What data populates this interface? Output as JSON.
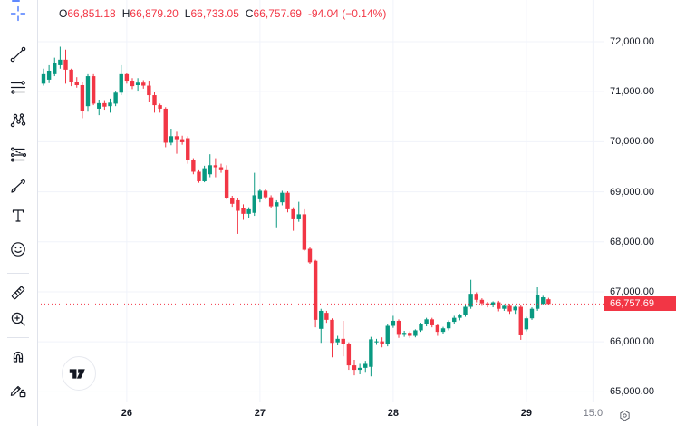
{
  "legend": {
    "items": [
      {
        "k": "O",
        "v": "66,851.18"
      },
      {
        "k": "H",
        "v": "66,879.20"
      },
      {
        "k": "L",
        "v": "66,733.05"
      },
      {
        "k": "C",
        "v": "66,757.69"
      }
    ],
    "change": "-94.04 (−0.14%)"
  },
  "toolbar": {
    "tools": [
      {
        "name": "crosshair-tool",
        "icon": "crosshair",
        "color": "#2962ff"
      },
      {
        "name": "trend-line-tool",
        "icon": "trend-line"
      },
      {
        "name": "fib-retracement-tool",
        "icon": "fib-lines"
      },
      {
        "name": "pattern-tool",
        "icon": "xabcd-pattern"
      },
      {
        "name": "position-tool",
        "icon": "position-lines"
      },
      {
        "name": "brush-tool",
        "icon": "brush"
      },
      {
        "name": "text-tool",
        "icon": "text"
      },
      {
        "name": "emoji-tool",
        "icon": "smiley"
      },
      {
        "name": "measure-tool",
        "icon": "ruler"
      },
      {
        "name": "zoom-in-tool",
        "icon": "zoom-in"
      },
      {
        "name": "magnet-tool",
        "icon": "magnet"
      },
      {
        "name": "drawing-lock-tool",
        "icon": "pencil-lock"
      }
    ]
  },
  "price_axis": {
    "ticks": [
      {
        "label": "72,000.00",
        "value": 72000
      },
      {
        "label": "71,000.00",
        "value": 71000
      },
      {
        "label": "70,000.00",
        "value": 70000
      },
      {
        "label": "69,000.00",
        "value": 69000
      },
      {
        "label": "68,000.00",
        "value": 68000
      },
      {
        "label": "67,000.00",
        "value": 67000
      },
      {
        "label": "66,000.00",
        "value": 66000
      },
      {
        "label": "65,000.00",
        "value": 65000
      }
    ],
    "current_price_label": "66,757.69"
  },
  "time_axis": {
    "ticks": [
      {
        "label": "26",
        "i": 15,
        "muted": false
      },
      {
        "label": "27",
        "i": 39,
        "muted": false
      },
      {
        "label": "28",
        "i": 63,
        "muted": false
      },
      {
        "label": "29",
        "i": 87,
        "muted": false
      },
      {
        "label": "15:0",
        "i": 99,
        "muted": true
      }
    ]
  },
  "colors": {
    "up": "#089981",
    "down": "#f23645",
    "accent_blue": "#2962ff",
    "text": "#131722",
    "muted": "#787b86",
    "grid": "#f0f3fa",
    "border": "#e0e3eb",
    "price_line": "#f23645",
    "badge_bg": "#f23645",
    "badge_text": "#ffffff"
  },
  "chart_data": {
    "type": "candlestick",
    "title": "",
    "ylim": [
      64807,
      72833
    ],
    "grid": true,
    "current_price": 66757.69,
    "candles": [
      [
        71160,
        71460,
        71120,
        71350
      ],
      [
        71240,
        71530,
        71170,
        71420
      ],
      [
        71350,
        71680,
        71310,
        71570
      ],
      [
        71530,
        71900,
        71460,
        71640
      ],
      [
        71640,
        71840,
        71160,
        71440
      ],
      [
        71440,
        71460,
        71110,
        71200
      ],
      [
        71200,
        71290,
        71080,
        71130
      ],
      [
        71130,
        71200,
        70470,
        70620
      ],
      [
        70710,
        71350,
        70600,
        71310
      ],
      [
        71310,
        71350,
        70730,
        70760
      ],
      [
        70660,
        70840,
        70530,
        70770
      ],
      [
        70770,
        70830,
        70640,
        70700
      ],
      [
        70710,
        70860,
        70580,
        70780
      ],
      [
        70760,
        71020,
        70710,
        70980
      ],
      [
        70980,
        71530,
        70930,
        71350
      ],
      [
        71350,
        71380,
        71160,
        71220
      ],
      [
        71220,
        71270,
        71050,
        71110
      ],
      [
        71130,
        71270,
        71020,
        71180
      ],
      [
        71180,
        71230,
        71060,
        71120
      ],
      [
        71120,
        71220,
        70800,
        70930
      ],
      [
        70930,
        71000,
        70580,
        70730
      ],
      [
        70730,
        70760,
        70580,
        70660
      ],
      [
        70660,
        70690,
        69890,
        69980
      ],
      [
        69980,
        70260,
        69930,
        70110
      ],
      [
        70110,
        70200,
        69760,
        70050
      ],
      [
        70050,
        70120,
        69940,
        69990
      ],
      [
        70070,
        70110,
        69560,
        69640
      ],
      [
        69640,
        69670,
        69350,
        69400
      ],
      [
        69400,
        69430,
        69180,
        69210
      ],
      [
        69210,
        69520,
        69190,
        69470
      ],
      [
        69350,
        69750,
        69290,
        69530
      ],
      [
        69530,
        69670,
        69290,
        69490
      ],
      [
        69490,
        69560,
        69380,
        69430
      ],
      [
        69430,
        69530,
        68850,
        68870
      ],
      [
        68870,
        68920,
        68700,
        68760
      ],
      [
        68830,
        68870,
        68160,
        68620
      ],
      [
        68680,
        68750,
        68440,
        68560
      ],
      [
        68560,
        68690,
        68470,
        68650
      ],
      [
        68580,
        69380,
        68520,
        68930
      ],
      [
        68850,
        69060,
        68790,
        69020
      ],
      [
        69020,
        69060,
        68850,
        68890
      ],
      [
        68890,
        68930,
        68670,
        68710
      ],
      [
        68710,
        68830,
        68290,
        68790
      ],
      [
        68790,
        69020,
        68730,
        68980
      ],
      [
        68980,
        69010,
        68590,
        68650
      ],
      [
        68650,
        68690,
        68220,
        68450
      ],
      [
        68450,
        68800,
        68400,
        68550
      ],
      [
        68550,
        68650,
        67820,
        67840
      ],
      [
        67860,
        67890,
        67560,
        67590
      ],
      [
        67620,
        67640,
        66290,
        66440
      ],
      [
        66260,
        66660,
        65980,
        66620
      ],
      [
        66580,
        66620,
        66380,
        66440
      ],
      [
        66440,
        66470,
        65690,
        65980
      ],
      [
        65990,
        66120,
        65930,
        66060
      ],
      [
        66060,
        66420,
        65710,
        65960
      ],
      [
        65960,
        65990,
        65440,
        65530
      ],
      [
        65530,
        65640,
        65330,
        65440
      ],
      [
        65440,
        65560,
        65350,
        65480
      ],
      [
        65480,
        65620,
        65400,
        65560
      ],
      [
        65500,
        66100,
        65310,
        66050
      ],
      [
        65990,
        66060,
        65940,
        66010
      ],
      [
        66010,
        66090,
        65890,
        65950
      ],
      [
        65950,
        66350,
        65910,
        66320
      ],
      [
        66320,
        66520,
        66280,
        66420
      ],
      [
        66420,
        66450,
        66080,
        66140
      ],
      [
        66140,
        66220,
        66100,
        66180
      ],
      [
        66180,
        66210,
        66080,
        66120
      ],
      [
        66120,
        66250,
        66090,
        66230
      ],
      [
        66230,
        66380,
        66200,
        66350
      ],
      [
        66350,
        66480,
        66310,
        66450
      ],
      [
        66450,
        66480,
        66290,
        66330
      ],
      [
        66330,
        66360,
        66120,
        66200
      ],
      [
        66200,
        66300,
        66150,
        66270
      ],
      [
        66270,
        66430,
        66230,
        66400
      ],
      [
        66400,
        66520,
        66360,
        66480
      ],
      [
        66480,
        66560,
        66430,
        66530
      ],
      [
        66530,
        66740,
        66500,
        66700
      ],
      [
        66700,
        67240,
        66660,
        66960
      ],
      [
        66960,
        66990,
        66790,
        66840
      ],
      [
        66840,
        66870,
        66720,
        66770
      ],
      [
        66770,
        66800,
        66690,
        66730
      ],
      [
        66730,
        66810,
        66690,
        66790
      ],
      [
        66790,
        66820,
        66610,
        66660
      ],
      [
        66660,
        66750,
        66620,
        66720
      ],
      [
        66720,
        66760,
        66560,
        66610
      ],
      [
        66630,
        66720,
        66560,
        66700
      ],
      [
        66700,
        66730,
        66040,
        66130
      ],
      [
        66250,
        66500,
        66210,
        66470
      ],
      [
        66470,
        66690,
        66440,
        66660
      ],
      [
        66660,
        67090,
        66620,
        66930
      ],
      [
        66760,
        66920,
        66730,
        66890
      ],
      [
        66851.18,
        66879.2,
        66733.05,
        66757.69
      ]
    ]
  }
}
